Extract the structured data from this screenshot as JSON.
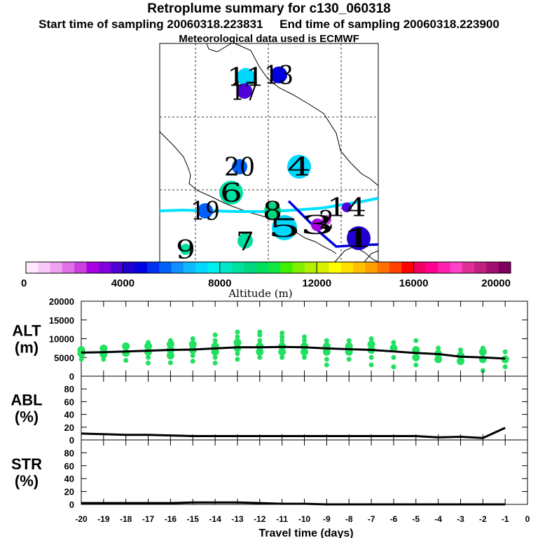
{
  "header": {
    "title": "Retroplume summary for c130_060318",
    "time_line": "Start time of sampling 20060318.223831     End time of sampling 20060318.223900",
    "met_line": "Meteorological data used is ECMWF"
  },
  "chart_data": [
    {
      "type": "map",
      "name": "retroplume-map",
      "plume_points": [
        {
          "label": "11",
          "altitude": 7200
        },
        {
          "label": "13",
          "altitude": 4600
        },
        {
          "label": "17",
          "altitude": 3600
        },
        {
          "label": "20",
          "altitude": 5600
        },
        {
          "label": "4",
          "altitude": 7400
        },
        {
          "label": "6",
          "altitude": 8600
        },
        {
          "label": "19",
          "altitude": 5800
        },
        {
          "label": "8",
          "altitude": 9400
        },
        {
          "label": "5",
          "altitude": 7200
        },
        {
          "label": "2",
          "altitude": 2200
        },
        {
          "label": "3",
          "altitude": 2800
        },
        {
          "label": "14",
          "altitude": 3600
        },
        {
          "label": "7",
          "altitude": 8800
        },
        {
          "label": "9",
          "altitude": 8800
        },
        {
          "label": "1",
          "altitude": 4400
        }
      ]
    },
    {
      "type": "colorbar",
      "name": "altitude-colorbar",
      "label": "Altitude (m)",
      "range": [
        0,
        20000
      ],
      "ticks": [
        "0",
        "4000",
        "8000",
        "12000",
        "16000",
        "20000"
      ],
      "colors": [
        "#ffe8ff",
        "#f8c8f8",
        "#f0a0f0",
        "#e070e8",
        "#c840e0",
        "#a800e0",
        "#8000e0",
        "#5000d8",
        "#2000d0",
        "#0000e0",
        "#0030f0",
        "#0060f8",
        "#1090ff",
        "#10b8ff",
        "#00d8ff",
        "#00f0f0",
        "#00e8c8",
        "#00e0a0",
        "#00d880",
        "#00e060",
        "#10e840",
        "#40f000",
        "#80f000",
        "#b0f000",
        "#d8f000",
        "#ffff00",
        "#ffe000",
        "#ffc000",
        "#ffa000",
        "#ff7000",
        "#ff4000",
        "#ff0000",
        "#f00060",
        "#ff0090",
        "#ff20b0",
        "#ff40c8",
        "#e03098",
        "#c02080",
        "#a01070",
        "#800060"
      ]
    },
    {
      "type": "scatter+line",
      "name": "alt-panel",
      "ylabel_lines": [
        "ALT",
        "(m)"
      ],
      "ylim": [
        0,
        20000
      ],
      "yticks": [
        "0",
        "5000",
        "10000",
        "15000",
        "20000"
      ],
      "xlim": [
        -20,
        0
      ],
      "x": [
        -20,
        -19,
        -18,
        -17,
        -16,
        -15,
        -14,
        -13,
        -12,
        -11,
        -10,
        -9,
        -8,
        -7,
        -6,
        -5,
        -4,
        -3,
        -2,
        -1
      ],
      "mean": [
        6300,
        6400,
        6600,
        6800,
        7000,
        7100,
        7400,
        7700,
        7700,
        7800,
        7700,
        7400,
        7200,
        7000,
        6600,
        6200,
        5900,
        5200,
        5000,
        4700
      ],
      "spread": [
        [
          4500,
          6000,
          7000
        ],
        [
          4500,
          5800,
          7400
        ],
        [
          4200,
          6200,
          8000
        ],
        [
          3500,
          5000,
          6500,
          8000,
          9000
        ],
        [
          3600,
          5500,
          7000,
          8500,
          9500
        ],
        [
          4000,
          5500,
          7000,
          8500,
          10000
        ],
        [
          3500,
          5000,
          6500,
          8000,
          9500,
          11000
        ],
        [
          4500,
          6000,
          7500,
          9000,
          10500,
          11800
        ],
        [
          5000,
          6500,
          8000,
          9500,
          11000,
          11800
        ],
        [
          5000,
          6500,
          8000,
          9500,
          10500,
          11500
        ],
        [
          5000,
          6500,
          8000,
          9500,
          10500
        ],
        [
          3000,
          4500,
          6500,
          8000,
          9500
        ],
        [
          4500,
          6500,
          8000,
          9500
        ],
        [
          3000,
          5000,
          7000,
          8500,
          10000
        ],
        [
          2500,
          5000,
          7500,
          9000
        ],
        [
          3000,
          5000,
          7000,
          9500
        ],
        [
          4500,
          6000,
          7500
        ],
        [
          4000,
          5500,
          7000
        ],
        [
          1500,
          4500,
          6500,
          7500
        ],
        [
          2500,
          4500,
          6500
        ]
      ]
    },
    {
      "type": "line",
      "name": "abl-panel",
      "ylabel_lines": [
        "ABL",
        "(%)"
      ],
      "ylim": [
        0,
        100
      ],
      "yticks": [
        "0",
        "20",
        "40",
        "60",
        "80"
      ],
      "xlim": [
        -20,
        0
      ],
      "x": [
        -20,
        -19,
        -18,
        -17,
        -16,
        -15,
        -14,
        -13,
        -12,
        -11,
        -10,
        -9,
        -8,
        -7,
        -6,
        -5,
        -4,
        -3,
        -2,
        -1
      ],
      "values": [
        10,
        9,
        8,
        8,
        7,
        6,
        6,
        6,
        6,
        6,
        6,
        6,
        6,
        6,
        6,
        6,
        4,
        5,
        3,
        19
      ]
    },
    {
      "type": "line",
      "name": "str-panel",
      "ylabel_lines": [
        "STR",
        "(%)"
      ],
      "ylim": [
        0,
        100
      ],
      "yticks": [
        "0",
        "20",
        "40",
        "60",
        "80"
      ],
      "xlim": [
        -20,
        0
      ],
      "x": [
        -20,
        -19,
        -18,
        -17,
        -16,
        -15,
        -14,
        -13,
        -12,
        -11,
        -10,
        -9,
        -8,
        -7,
        -6,
        -5,
        -4,
        -3,
        -2,
        -1
      ],
      "values": [
        2,
        2,
        2,
        2,
        2,
        3,
        3,
        3,
        2,
        1,
        1,
        0,
        0,
        0,
        0,
        0,
        0,
        0,
        0,
        0
      ]
    }
  ],
  "xaxis": {
    "label": "Travel time (days)",
    "ticks": [
      "-20",
      "-19",
      "-18",
      "-17",
      "-16",
      "-15",
      "-14",
      "-13",
      "-12",
      "-11",
      "-10",
      "-9",
      "-8",
      "-7",
      "-6",
      "-5",
      "-4",
      "-3",
      "-2",
      "-1",
      "0"
    ]
  }
}
